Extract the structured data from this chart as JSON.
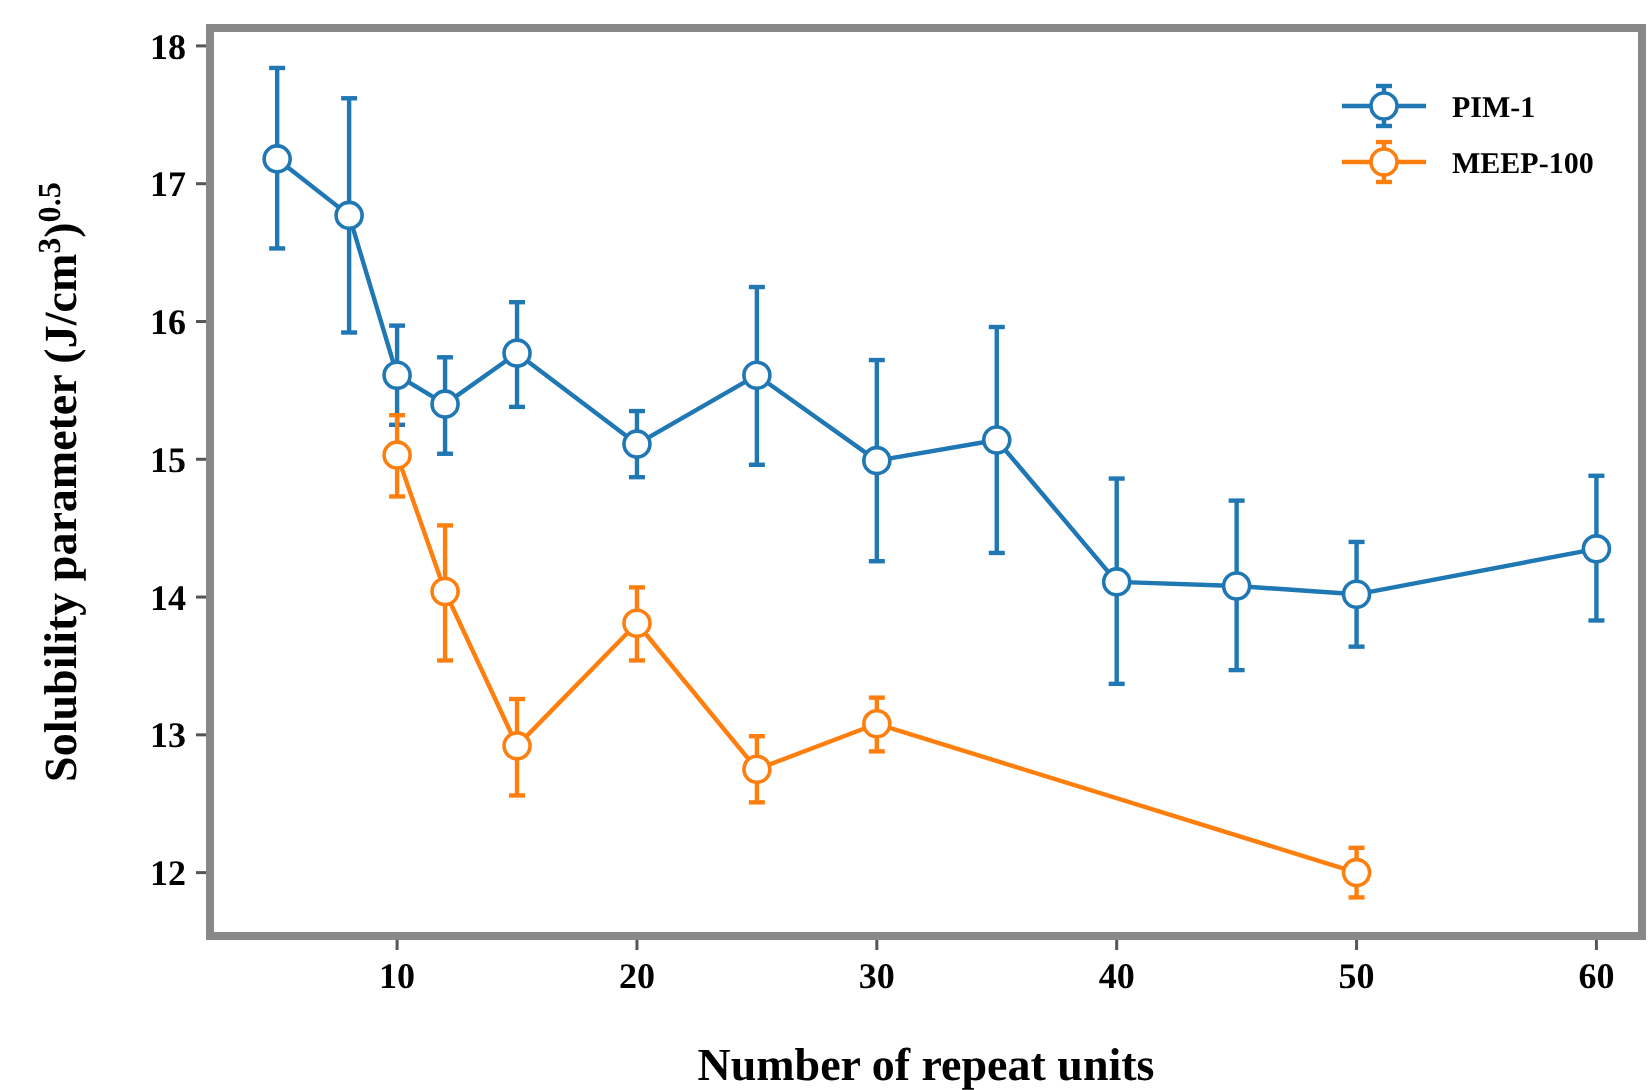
{
  "chart_data": {
    "type": "line",
    "xlabel": "Number of repeat units",
    "ylabel": "Solubility parameter (J/cm$^{3}$)$^{0.5}$",
    "xlim": [
      2.2,
      61.9
    ],
    "ylim": [
      11.54,
      18.13
    ],
    "xticks": [
      10,
      20,
      30,
      40,
      50,
      60
    ],
    "yticks": [
      12,
      13,
      14,
      15,
      16,
      17,
      18
    ],
    "grid": false,
    "legend": "top right",
    "marker": "circle",
    "line_style": "solid",
    "series": [
      {
        "name": "PIM-1",
        "color": "#1f77b4",
        "x": [
          5,
          8,
          10,
          12,
          15,
          20,
          25,
          30,
          35,
          40,
          45,
          50,
          60
        ],
        "values": [
          17.18,
          16.77,
          15.61,
          15.4,
          15.77,
          15.11,
          15.61,
          14.99,
          15.14,
          14.11,
          14.08,
          14.02,
          14.35
        ],
        "errors": [
          [
            16.53,
            17.84
          ],
          [
            15.92,
            17.62
          ],
          [
            15.25,
            15.97
          ],
          [
            15.04,
            15.74
          ],
          [
            15.38,
            16.14
          ],
          [
            14.87,
            15.35
          ],
          [
            14.96,
            16.25
          ],
          [
            14.26,
            15.72
          ],
          [
            14.32,
            15.96
          ],
          [
            13.37,
            14.86
          ],
          [
            13.47,
            14.7
          ],
          [
            13.64,
            14.4
          ],
          [
            13.83,
            14.88
          ]
        ]
      },
      {
        "name": "MEEP-100",
        "color": "#ff7f0e",
        "x": [
          10,
          12,
          15,
          20,
          25,
          30,
          50
        ],
        "values": [
          15.03,
          14.04,
          12.92,
          13.81,
          12.75,
          13.08,
          12.0
        ],
        "errors": [
          [
            14.73,
            15.32
          ],
          [
            13.54,
            14.52
          ],
          [
            12.56,
            13.26
          ],
          [
            13.54,
            14.07
          ],
          [
            12.51,
            12.99
          ],
          [
            12.88,
            13.27
          ],
          [
            11.82,
            12.18
          ]
        ]
      }
    ]
  }
}
